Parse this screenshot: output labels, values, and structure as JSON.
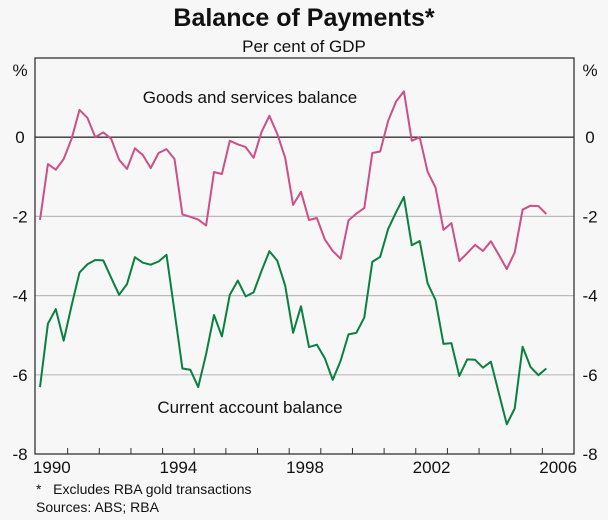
{
  "chart_data": {
    "type": "line",
    "title": "Balance of Payments*",
    "subtitle": "Per cent of GDP",
    "ylabel_left": "%",
    "ylabel_right": "%",
    "ylim": [
      -8,
      2
    ],
    "yticks": [
      0,
      -2,
      -4,
      -6,
      -8
    ],
    "xlim": [
      1990,
      2007
    ],
    "xticks": [
      "1990",
      "1994",
      "1998",
      "2002",
      "2006"
    ],
    "x_start": "1990-Q1",
    "frequency": "quarterly",
    "grid": true,
    "series": [
      {
        "name": "Goods and services balance",
        "color": "#cc4f8a",
        "values": [
          -2.09,
          -0.68,
          -0.82,
          -0.55,
          -0.04,
          0.69,
          0.49,
          0.0,
          0.12,
          -0.04,
          -0.57,
          -0.8,
          -0.28,
          -0.45,
          -0.78,
          -0.4,
          -0.3,
          -0.55,
          -1.95,
          -2.01,
          -2.08,
          -2.23,
          -0.88,
          -0.93,
          -0.09,
          -0.18,
          -0.25,
          -0.52,
          0.13,
          0.54,
          0.08,
          -0.52,
          -1.71,
          -1.38,
          -2.09,
          -2.04,
          -2.58,
          -2.87,
          -3.07,
          -2.1,
          -1.93,
          -1.79,
          -0.4,
          -0.36,
          0.41,
          0.9,
          1.16,
          -0.09,
          0.0,
          -0.87,
          -1.27,
          -2.34,
          -2.17,
          -3.13,
          -2.93,
          -2.72,
          -2.87,
          -2.63,
          -2.97,
          -3.33,
          -2.91,
          -1.83,
          -1.73,
          -1.74,
          -1.94
        ]
      },
      {
        "name": "Current account balance",
        "color": "#0a8040",
        "values": [
          -6.31,
          -4.71,
          -4.34,
          -5.14,
          -4.25,
          -3.42,
          -3.21,
          -3.1,
          -3.11,
          -3.55,
          -3.98,
          -3.71,
          -3.03,
          -3.17,
          -3.22,
          -3.14,
          -2.97,
          -4.4,
          -5.84,
          -5.87,
          -6.31,
          -5.48,
          -4.49,
          -5.03,
          -3.98,
          -3.62,
          -4.02,
          -3.92,
          -3.38,
          -2.88,
          -3.12,
          -3.75,
          -4.94,
          -4.27,
          -5.3,
          -5.24,
          -5.58,
          -6.13,
          -5.65,
          -4.98,
          -4.94,
          -4.55,
          -3.15,
          -3.02,
          -2.32,
          -1.9,
          -1.51,
          -2.73,
          -2.62,
          -3.69,
          -4.11,
          -5.22,
          -5.2,
          -6.03,
          -5.61,
          -5.62,
          -5.82,
          -5.67,
          -6.46,
          -7.25,
          -6.85,
          -5.29,
          -5.8,
          -6.01,
          -5.84
        ]
      }
    ],
    "footnote": "*   Excludes RBA gold transactions",
    "sources": "Sources: ABS; RBA"
  }
}
